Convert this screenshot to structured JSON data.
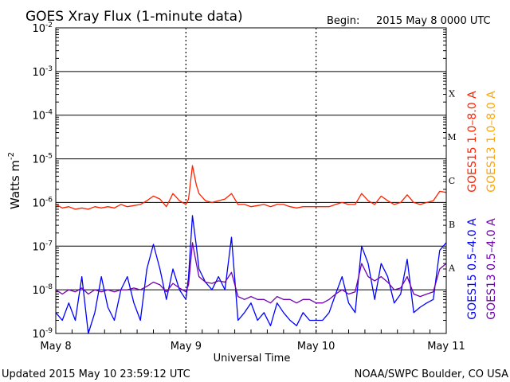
{
  "header": {
    "title": "GOES Xray Flux (1-minute data)",
    "begin_label": "Begin:",
    "begin_value": "2015 May 8 0000 UTC"
  },
  "footer": {
    "updated": "Updated 2015 May 10 23:59:12 UTC",
    "credit": "NOAA/SWPC Boulder, CO USA"
  },
  "colors": {
    "goes15_long": "#ff2000",
    "goes13_long": "#ffa500",
    "goes15_short": "#0000ff",
    "goes13_short": "#7000b0",
    "grid": "#000000",
    "background": "#ffffff"
  },
  "chart_data": {
    "type": "line",
    "title": "GOES Xray Flux (1-minute data)",
    "xlabel": "Universal Time",
    "ylabel": "Watts m",
    "ylabel_superscript": "-2",
    "yscale": "log",
    "ylim": [
      1e-09,
      0.01
    ],
    "xlim_days": [
      0,
      3
    ],
    "x_ticks": [
      {
        "day": 0,
        "label": "May 8"
      },
      {
        "day": 1,
        "label": "May 9"
      },
      {
        "day": 2,
        "label": "May 10"
      },
      {
        "day": 3,
        "label": "May 11"
      }
    ],
    "y_ticks": [
      {
        "exp": -9,
        "base": "10",
        "sup": "-9"
      },
      {
        "exp": -8,
        "base": "10",
        "sup": "-8"
      },
      {
        "exp": -7,
        "base": "10",
        "sup": "-7"
      },
      {
        "exp": -6,
        "base": "10",
        "sup": "-6"
      },
      {
        "exp": -5,
        "base": "10",
        "sup": "-5"
      },
      {
        "exp": -4,
        "base": "10",
        "sup": "-4"
      },
      {
        "exp": -3,
        "base": "10",
        "sup": "-3"
      },
      {
        "exp": -2,
        "base": "10",
        "sup": "-2"
      }
    ],
    "flare_classes": [
      {
        "label": "A",
        "exp": -7.5
      },
      {
        "label": "B",
        "exp": -6.5
      },
      {
        "label": "C",
        "exp": -5.5
      },
      {
        "label": "M",
        "exp": -4.5
      },
      {
        "label": "X",
        "exp": -3.5
      }
    ],
    "grid": {
      "horizontal_solid": true,
      "vertical_dotted": true
    },
    "legend": [
      {
        "text": "GOES15 1.0–8.0 A",
        "color": "#ff2000"
      },
      {
        "text": "GOES13 1.0–8.0 A",
        "color": "#ffa500"
      },
      {
        "text": "GOES15 0.5–4.0 A",
        "color": "#0000ff"
      },
      {
        "text": "GOES13 0.5–4.0 A",
        "color": "#7000b0"
      }
    ],
    "legend_placement": "right",
    "series": [
      {
        "name": "GOES15 1.0–8.0 A",
        "color": "#ff2000",
        "x": [
          0.0,
          0.05,
          0.1,
          0.15,
          0.2,
          0.25,
          0.3,
          0.35,
          0.4,
          0.45,
          0.5,
          0.55,
          0.6,
          0.65,
          0.7,
          0.75,
          0.8,
          0.85,
          0.9,
          0.95,
          1.0,
          1.02,
          1.05,
          1.08,
          1.1,
          1.15,
          1.2,
          1.25,
          1.3,
          1.35,
          1.4,
          1.45,
          1.5,
          1.55,
          1.6,
          1.65,
          1.7,
          1.75,
          1.8,
          1.85,
          1.9,
          1.95,
          2.0,
          2.05,
          2.1,
          2.15,
          2.2,
          2.25,
          2.3,
          2.35,
          2.4,
          2.45,
          2.5,
          2.55,
          2.6,
          2.65,
          2.7,
          2.75,
          2.8,
          2.85,
          2.9,
          2.95,
          3.0
        ],
        "y": [
          9e-07,
          7.5e-07,
          8e-07,
          7e-07,
          7.5e-07,
          7e-07,
          8e-07,
          7.5e-07,
          8e-07,
          7.5e-07,
          9e-07,
          8e-07,
          8.5e-07,
          9e-07,
          1.1e-06,
          1.4e-06,
          1.2e-06,
          8e-07,
          1.6e-06,
          1.1e-06,
          9e-07,
          1.2e-06,
          7e-06,
          2.5e-06,
          1.6e-06,
          1.1e-06,
          1e-06,
          1.1e-06,
          1.2e-06,
          1.6e-06,
          9e-07,
          9e-07,
          8e-07,
          8.5e-07,
          9e-07,
          8e-07,
          9e-07,
          9e-07,
          8e-07,
          7.5e-07,
          8e-07,
          8e-07,
          8e-07,
          8e-07,
          8e-07,
          9e-07,
          1e-06,
          9e-07,
          9e-07,
          1.6e-06,
          1.1e-06,
          9e-07,
          1.4e-06,
          1.1e-06,
          9e-07,
          1e-06,
          1.5e-06,
          1e-06,
          9e-07,
          1e-06,
          1.1e-06,
          1.8e-06,
          1.7e-06
        ]
      },
      {
        "name": "GOES15 0.5–4.0 A",
        "color": "#0000ff",
        "x": [
          0.0,
          0.05,
          0.1,
          0.15,
          0.2,
          0.25,
          0.3,
          0.35,
          0.4,
          0.45,
          0.5,
          0.55,
          0.6,
          0.65,
          0.7,
          0.75,
          0.8,
          0.85,
          0.9,
          0.95,
          1.0,
          1.02,
          1.05,
          1.08,
          1.1,
          1.15,
          1.2,
          1.25,
          1.3,
          1.35,
          1.4,
          1.45,
          1.5,
          1.55,
          1.6,
          1.65,
          1.7,
          1.75,
          1.8,
          1.85,
          1.9,
          1.95,
          2.0,
          2.05,
          2.1,
          2.15,
          2.2,
          2.25,
          2.3,
          2.35,
          2.4,
          2.45,
          2.5,
          2.55,
          2.6,
          2.65,
          2.7,
          2.75,
          2.8,
          2.85,
          2.9,
          2.95,
          3.0
        ],
        "y": [
          3e-09,
          2e-09,
          5e-09,
          2e-09,
          2e-08,
          1e-09,
          3e-09,
          2e-08,
          4e-09,
          2e-09,
          1e-08,
          2e-08,
          5e-09,
          2e-09,
          3e-08,
          1.1e-07,
          3e-08,
          6e-09,
          3e-08,
          1e-08,
          6e-09,
          2e-08,
          5e-07,
          1e-07,
          3e-08,
          1.5e-08,
          1e-08,
          2e-08,
          1e-08,
          1.6e-07,
          2e-09,
          3e-09,
          5e-09,
          2e-09,
          3e-09,
          1.5e-09,
          5e-09,
          3e-09,
          2e-09,
          1.5e-09,
          3e-09,
          2e-09,
          2e-09,
          2e-09,
          3e-09,
          8e-09,
          2e-08,
          5e-09,
          3e-09,
          1e-07,
          4e-08,
          6e-09,
          4e-08,
          2e-08,
          5e-09,
          8e-09,
          5e-08,
          3e-09,
          4e-09,
          5e-09,
          6e-09,
          8e-08,
          1.2e-07
        ]
      },
      {
        "name": "GOES13 0.5–4.0 A",
        "color": "#7000b0",
        "x": [
          0.0,
          0.05,
          0.1,
          0.15,
          0.2,
          0.25,
          0.3,
          0.35,
          0.4,
          0.45,
          0.5,
          0.55,
          0.6,
          0.65,
          0.7,
          0.75,
          0.8,
          0.85,
          0.9,
          0.95,
          1.0,
          1.02,
          1.05,
          1.08,
          1.1,
          1.15,
          1.2,
          1.25,
          1.3,
          1.35,
          1.4,
          1.45,
          1.5,
          1.55,
          1.6,
          1.65,
          1.7,
          1.75,
          1.8,
          1.85,
          1.9,
          1.95,
          2.0,
          2.05,
          2.1,
          2.15,
          2.2,
          2.25,
          2.3,
          2.35,
          2.4,
          2.45,
          2.5,
          2.55,
          2.6,
          2.65,
          2.7,
          2.75,
          2.8,
          2.85,
          2.9,
          2.95,
          3.0
        ],
        "y": [
          1e-08,
          8e-09,
          1e-08,
          9e-09,
          1.1e-08,
          8e-09,
          1e-08,
          9e-09,
          1e-08,
          9e-09,
          1e-08,
          1e-08,
          1.1e-08,
          1e-08,
          1.2e-08,
          1.5e-08,
          1.3e-08,
          9e-09,
          1.4e-08,
          1.1e-08,
          9e-09,
          1.3e-08,
          1.2e-07,
          4e-08,
          2e-08,
          1.5e-08,
          1.4e-08,
          1.6e-08,
          1.5e-08,
          2.5e-08,
          7e-09,
          6e-09,
          7e-09,
          6e-09,
          6e-09,
          5e-09,
          7e-09,
          6e-09,
          6e-09,
          5e-09,
          6e-09,
          6e-09,
          5e-09,
          5e-09,
          6e-09,
          8e-09,
          1e-08,
          8e-09,
          9e-09,
          4e-08,
          2e-08,
          1.6e-08,
          2e-08,
          1.5e-08,
          1e-08,
          1.1e-08,
          2e-08,
          8e-09,
          7e-09,
          8e-09,
          9e-09,
          3e-08,
          4e-08
        ]
      }
    ]
  }
}
